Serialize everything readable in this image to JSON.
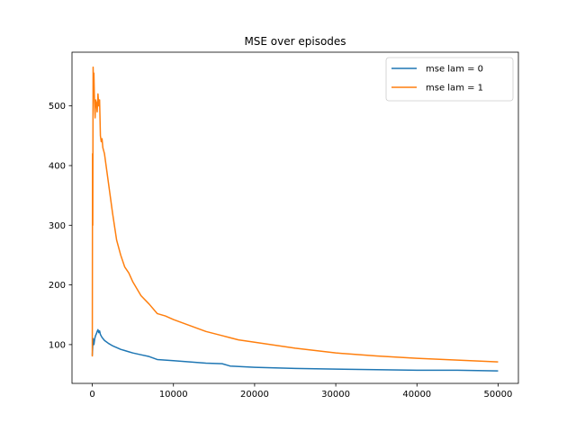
{
  "chart_data": {
    "type": "line",
    "title": "MSE over episodes",
    "xlabel": "",
    "ylabel": "",
    "xlim": [
      -2500,
      52500
    ],
    "ylim": [
      35,
      590
    ],
    "xticks": [
      0,
      10000,
      20000,
      30000,
      40000,
      50000
    ],
    "xtick_labels": [
      "0",
      "10000",
      "20000",
      "30000",
      "40000",
      "50000"
    ],
    "yticks": [
      100,
      200,
      300,
      400,
      500
    ],
    "ytick_labels": [
      "100",
      "200",
      "300",
      "400",
      "500"
    ],
    "grid": false,
    "legend_position": "upper-right",
    "series": [
      {
        "name": "mse lam = 0",
        "color": "#1f77b4",
        "x": [
          0,
          50,
          100,
          150,
          200,
          300,
          400,
          500,
          600,
          700,
          800,
          900,
          1000,
          1200,
          1500,
          2000,
          2500,
          3000,
          3500,
          4000,
          4500,
          5000,
          6000,
          7000,
          8000,
          10000,
          12000,
          14000,
          16000,
          17000,
          20000,
          25000,
          30000,
          35000,
          40000,
          45000,
          50000
        ],
        "y": [
          82,
          95,
          110,
          104,
          100,
          110,
          115,
          118,
          122,
          125,
          120,
          123,
          117,
          112,
          107,
          102,
          98,
          95,
          92,
          90,
          88,
          86,
          83,
          80,
          75,
          73,
          71,
          69,
          68,
          64,
          62,
          60,
          59,
          58,
          57,
          57,
          56
        ]
      },
      {
        "name": "mse lam = 1",
        "color": "#ff7f0e",
        "x": [
          0,
          30,
          60,
          100,
          150,
          200,
          250,
          300,
          350,
          400,
          500,
          600,
          700,
          800,
          900,
          1000,
          1100,
          1200,
          1300,
          1500,
          1800,
          2000,
          2500,
          3000,
          3500,
          4000,
          4500,
          5000,
          6000,
          7000,
          8000,
          9000,
          10000,
          12000,
          14000,
          16000,
          18000,
          20000,
          25000,
          30000,
          35000,
          40000,
          45000,
          50000
        ],
        "y": [
          80,
          420,
          300,
          565,
          540,
          555,
          520,
          500,
          480,
          510,
          505,
          490,
          520,
          500,
          510,
          450,
          440,
          445,
          430,
          420,
          390,
          370,
          320,
          275,
          250,
          230,
          220,
          205,
          182,
          168,
          152,
          148,
          142,
          132,
          122,
          115,
          108,
          104,
          94,
          86,
          81,
          77,
          74,
          71
        ]
      }
    ]
  }
}
